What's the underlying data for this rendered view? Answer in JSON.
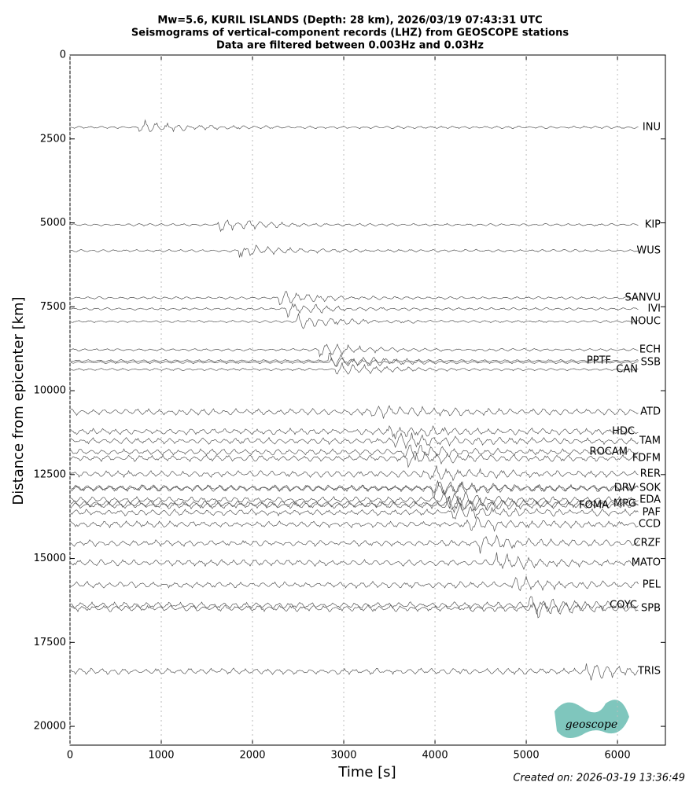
{
  "chart_data": {
    "type": "seismogram",
    "title": [
      "Mw=5.6, KURIL ISLANDS (Depth: 28 km), 2026/03/19 07:43:31 UTC",
      "Seismograms of vertical-component records (LHZ) from GEOSCOPE stations",
      "Data are filtered between 0.003Hz and 0.03Hz"
    ],
    "xlabel": "Time [s]",
    "ylabel": "Distance from epicenter [km]",
    "xlim": [
      0,
      6525
    ],
    "ylim": [
      20560,
      0
    ],
    "xticks": [
      0,
      1000,
      2000,
      3000,
      4000,
      5000,
      6000
    ],
    "yticks": [
      0,
      2500,
      5000,
      7500,
      10000,
      12500,
      15000,
      17500,
      20000
    ],
    "grid": true,
    "color": "#555555",
    "stations": [
      "INU",
      "KIP",
      "WUS",
      "SANVU",
      "IVI",
      "NOUC",
      "ECH",
      "PPTF",
      "SSB",
      "CAN",
      "ATD",
      "HDC",
      "TAM",
      "ROCAM",
      "FDFM",
      "RER",
      "DRV",
      "SOK",
      "MPG",
      "EDA",
      "FOMA",
      "PAF",
      "CCD",
      "CRZF",
      "MATO",
      "PEL",
      "COYC",
      "SPB",
      "TRIS"
    ],
    "distances": [
      2155,
      5058,
      5831,
      7237,
      7564,
      7939,
      8782,
      9110,
      9157,
      9368,
      10632,
      11218,
      11499,
      11827,
      12014,
      12482,
      12904,
      12904,
      13372,
      13255,
      13419,
      13630,
      13981,
      14543,
      15129,
      15785,
      16393,
      16487,
      18361
    ],
    "logo_text": "geoscope",
    "footer": "Created on: 2026-03-19 13:36:49"
  }
}
